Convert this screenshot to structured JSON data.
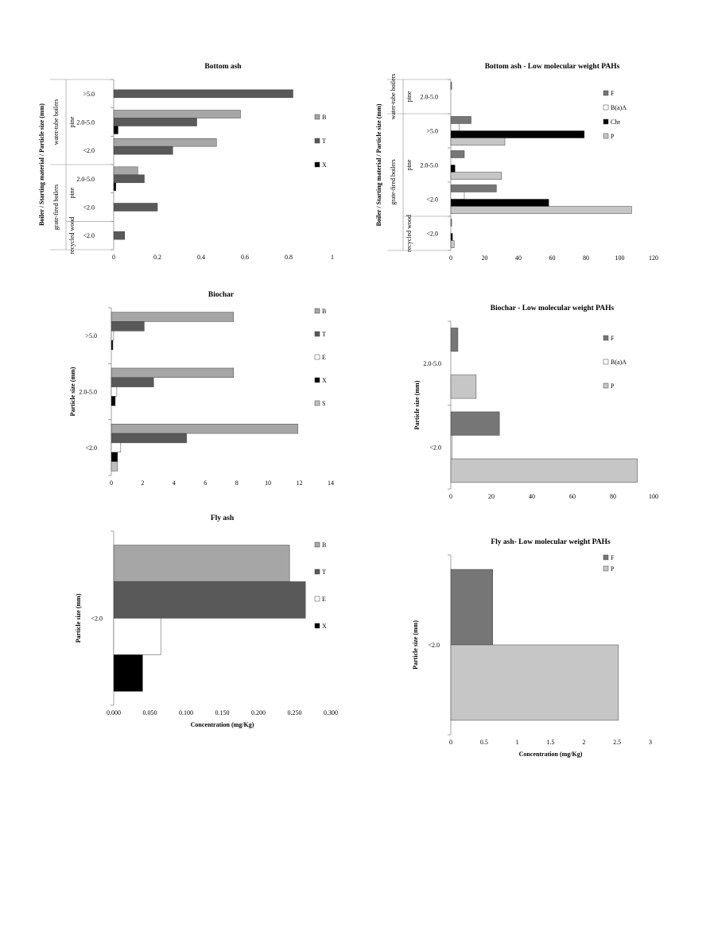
{
  "colors": {
    "B": "#a6a6a6",
    "T": "#595959",
    "E": "#ffffff",
    "X": "#000000",
    "S": "#bfbfbf",
    "F": "#767676",
    "B(a)A": "#ffffff",
    "Chr": "#000000",
    "P": "#c6c6c6"
  },
  "chart_data": [
    {
      "id": "c1",
      "type": "bar",
      "title": "Bottom ash",
      "ylabel": "Boiler / Starting material / Particle size (mm)",
      "xlabel": "",
      "xlim": [
        0,
        1
      ],
      "xticks": [
        "0",
        "0.2",
        "0.4",
        "0.6",
        "0.8",
        "1"
      ],
      "categories": [
        ">5.0",
        "2.0-5.0",
        "<2.0",
        "2.0-5.0",
        "<2.0",
        "<2.0"
      ],
      "groups": [
        {
          "label": "water-tube boilers",
          "sub": [
            {
              "label": "pine",
              "range": [
                0,
                2
              ]
            }
          ],
          "range": [
            0,
            2
          ]
        },
        {
          "label": "grate-fired boilers",
          "sub": [
            {
              "label": "pine",
              "range": [
                3,
                4
              ]
            },
            {
              "label": "recycled wood",
              "range": [
                5,
                5
              ]
            }
          ],
          "range": [
            3,
            5
          ]
        }
      ],
      "series": [
        {
          "name": "B",
          "values": [
            null,
            0.58,
            0.47,
            0.11,
            null,
            null
          ]
        },
        {
          "name": "T",
          "values": [
            0.82,
            0.38,
            0.27,
            0.14,
            0.2,
            0.05
          ]
        },
        {
          "name": "X",
          "values": [
            null,
            0.02,
            null,
            0.01,
            null,
            null
          ]
        }
      ]
    },
    {
      "id": "c2",
      "type": "bar",
      "title": "Bottom ash - Low molecular weight PAHs",
      "ylabel": "Boiler / Starting material / Particle size (mm)",
      "xlabel": "",
      "xlim": [
        0,
        120
      ],
      "xticks": [
        "0",
        "20",
        "40",
        "60",
        "80",
        "100",
        "120"
      ],
      "categories": [
        "2.0-5.0",
        ">5.0",
        "2.0-5.0",
        "<2.0",
        "<2.0"
      ],
      "groups": [
        {
          "label": "water-tube boilers",
          "sub": [
            {
              "label": "pine",
              "range": [
                0,
                0
              ]
            }
          ],
          "range": [
            0,
            0
          ]
        },
        {
          "label": "grate-fired boilers",
          "sub": [
            {
              "label": "pine",
              "range": [
                1,
                3
              ]
            },
            {
              "label": "recycled wood",
              "range": [
                4,
                4
              ]
            }
          ],
          "range": [
            1,
            4
          ]
        }
      ],
      "series": [
        {
          "name": "F",
          "values": [
            0.5,
            12,
            8,
            27,
            0.5
          ]
        },
        {
          "name": "B(a)A",
          "values": [
            null,
            5,
            null,
            8,
            null
          ]
        },
        {
          "name": "Chr",
          "values": [
            null,
            79,
            2.5,
            58,
            1
          ]
        },
        {
          "name": "P",
          "values": [
            null,
            32,
            30,
            107,
            2
          ]
        }
      ]
    },
    {
      "id": "c3",
      "type": "bar",
      "title": "Biochar",
      "ylabel": "Particle size (mm)",
      "xlabel": "",
      "xlim": [
        0,
        14
      ],
      "xticks": [
        "0",
        "2",
        "4",
        "6",
        "8",
        "10",
        "12",
        "14"
      ],
      "categories": [
        ">5.0",
        "2.0-5.0",
        "<2.0"
      ],
      "series": [
        {
          "name": "B",
          "values": [
            7.8,
            7.8,
            11.9
          ]
        },
        {
          "name": "T",
          "values": [
            2.1,
            2.7,
            4.8
          ]
        },
        {
          "name": "E",
          "values": [
            0.15,
            0.35,
            0.6
          ]
        },
        {
          "name": "X",
          "values": [
            0.1,
            0.25,
            0.4
          ]
        },
        {
          "name": "S",
          "values": [
            null,
            null,
            0.4
          ]
        }
      ]
    },
    {
      "id": "c4",
      "type": "bar",
      "title": "Biochar - Low molecular weight PAHs",
      "ylabel": "Particle size  (mm)",
      "xlabel": "",
      "xlim": [
        0,
        100
      ],
      "xticks": [
        "0",
        "20",
        "40",
        "60",
        "80",
        "100"
      ],
      "categories": [
        "2.0-5.0",
        "<2.0"
      ],
      "series": [
        {
          "name": "F",
          "values": [
            3.5,
            24
          ]
        },
        {
          "name": "B(a)A",
          "values": [
            null,
            0.5
          ]
        },
        {
          "name": "P",
          "values": [
            12.5,
            92
          ]
        }
      ]
    },
    {
      "id": "c5",
      "type": "bar",
      "title": "Fly ash",
      "ylabel": "Particle size (mm)",
      "xlabel": "Concentration (mg/Kg)",
      "xlim": [
        0,
        0.3
      ],
      "xticks": [
        "0.000",
        "0.050",
        "0.100",
        "0.150",
        "0.200",
        "0.250",
        "0.300"
      ],
      "categories": [
        "<2.0"
      ],
      "series": [
        {
          "name": "B",
          "values": [
            0.243
          ]
        },
        {
          "name": "T",
          "values": [
            0.265
          ]
        },
        {
          "name": "E",
          "values": [
            0.065
          ]
        },
        {
          "name": "X",
          "values": [
            0.04
          ]
        }
      ]
    },
    {
      "id": "c6",
      "type": "bar",
      "title": "Fly ash- Low molecular weight PAHs",
      "ylabel": "Particle size (mm)",
      "xlabel": "Concentration (mg/Kg)",
      "xlim": [
        0,
        3
      ],
      "xticks": [
        "0",
        "0.5",
        "1",
        "1.5",
        "2",
        "2.5",
        "3"
      ],
      "categories": [
        "<2.0"
      ],
      "series": [
        {
          "name": "F",
          "values": [
            0.63
          ]
        },
        {
          "name": "P",
          "values": [
            2.52
          ]
        }
      ]
    }
  ]
}
